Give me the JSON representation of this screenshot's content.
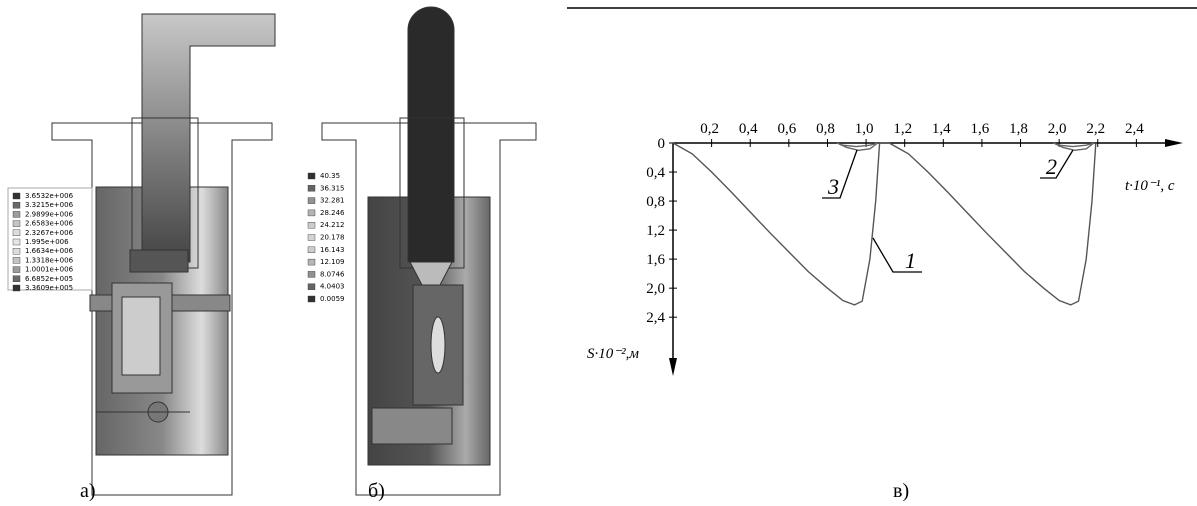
{
  "panels": [
    {
      "caption": "а)",
      "legend": [
        "3.6532e+006",
        "3.3215e+006",
        "2.9899e+006",
        "2.6583e+006",
        "2.3267e+006",
        "1.995e+006",
        "1.6634e+006",
        "1.3318e+006",
        "1.0001e+006",
        "6.6852e+005",
        "3.3609e+005"
      ]
    },
    {
      "caption": "б)",
      "legend": [
        "40.35",
        "36.315",
        "32.281",
        "28.246",
        "24.212",
        "20.178",
        "16.143",
        "12.109",
        "8.0746",
        "4.0403",
        "0.0059"
      ]
    }
  ],
  "chart_data": {
    "type": "line",
    "caption": "в)",
    "x_label": "t·10⁻¹, с",
    "y_label": "S·10⁻²,м",
    "xlim": [
      0,
      2.6
    ],
    "ylim": [
      0,
      3.1
    ],
    "y_inverted": true,
    "xticks": [
      {
        "value": 0.2,
        "label": "0,2"
      },
      {
        "value": 0.4,
        "label": "0,4"
      },
      {
        "value": 0.6,
        "label": "0,6"
      },
      {
        "value": 0.8,
        "label": "0,8"
      },
      {
        "value": 1.0,
        "label": "1,0"
      },
      {
        "value": 1.2,
        "label": "1,2"
      },
      {
        "value": 1.4,
        "label": "1,4"
      },
      {
        "value": 1.6,
        "label": "1,6"
      },
      {
        "value": 1.8,
        "label": "1,8"
      },
      {
        "value": 2.0,
        "label": "2,0"
      },
      {
        "value": 2.2,
        "label": "2,2"
      },
      {
        "value": 2.4,
        "label": "2,4"
      }
    ],
    "yticks": [
      0,
      {
        "value": 0.4,
        "label": "0,4"
      },
      {
        "value": 0.8,
        "label": "0,8"
      },
      {
        "value": 1.2,
        "label": "1,2"
      },
      {
        "value": 1.6,
        "label": "1,6"
      },
      {
        "value": 2.0,
        "label": "2,0"
      },
      {
        "value": 2.4,
        "label": "2,4"
      }
    ],
    "series": [
      {
        "name": "1",
        "color": "#555555",
        "x": [
          0,
          0.1,
          0.2,
          0.3,
          0.4,
          0.5,
          0.6,
          0.7,
          0.8,
          0.88,
          0.94,
          0.98,
          1.02,
          1.05,
          1.07,
          1.12,
          1.22,
          1.32,
          1.42,
          1.52,
          1.62,
          1.72,
          1.82,
          1.92,
          2.0,
          2.06,
          2.1,
          2.14,
          2.17,
          2.19
        ],
        "values": [
          0,
          0.15,
          0.4,
          0.67,
          0.95,
          1.23,
          1.5,
          1.77,
          2.0,
          2.17,
          2.23,
          2.18,
          1.6,
          0.8,
          0,
          0,
          0.15,
          0.4,
          0.67,
          0.95,
          1.23,
          1.5,
          1.77,
          2.0,
          2.17,
          2.23,
          2.18,
          1.6,
          0.8,
          0
        ]
      },
      {
        "name": "3",
        "color": "#666666",
        "x": [
          0.85,
          0.9,
          0.96,
          1.02,
          1.06,
          1.02,
          0.95,
          0.88,
          0.85
        ],
        "values": [
          0,
          0.06,
          0.1,
          0.08,
          0,
          0.03,
          0.05,
          0.03,
          0
        ]
      },
      {
        "name": "2",
        "color": "#666666",
        "x": [
          1.97,
          2.02,
          2.08,
          2.14,
          2.18,
          2.14,
          2.07,
          2.0,
          1.97
        ],
        "values": [
          0,
          0.06,
          0.1,
          0.08,
          0,
          0.03,
          0.05,
          0.03,
          0
        ]
      }
    ]
  }
}
